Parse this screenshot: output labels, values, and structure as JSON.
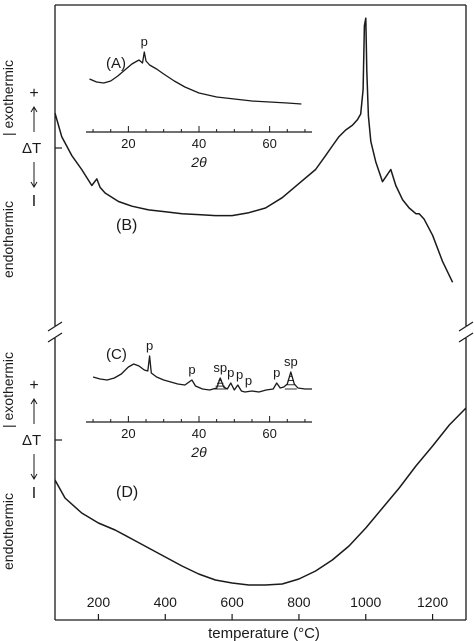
{
  "chart_data": [
    {
      "id": "B",
      "type": "line",
      "panel_label": "(B)",
      "ylabel_top": "endothermic",
      "ylabel_bottom": "exothermic",
      "ylabel_symbol": "ΔT",
      "ylabel_plus": "+",
      "ylabel_minus": "I",
      "xlim": [
        70,
        1300
      ],
      "series": [
        {
          "x": [
            70,
            90,
            120,
            150,
            180,
            195,
            205,
            220,
            260,
            300,
            350,
            400,
            450,
            500,
            550,
            600,
            650,
            700,
            750,
            800,
            850,
            880,
            900,
            920,
            940,
            960,
            975,
            985,
            992,
            996,
            1000,
            1003,
            1008,
            1015,
            1030,
            1050,
            1075,
            1090,
            1110,
            1130,
            1150,
            1160,
            1175,
            1200,
            1230,
            1260
          ],
          "y": [
            85,
            60,
            40,
            25,
            8,
            15,
            6,
            0,
            -9,
            -14,
            -18,
            -20,
            -22,
            -23,
            -24,
            -24,
            -21,
            -16,
            -5,
            10,
            25,
            40,
            50,
            60,
            67,
            72,
            78,
            84,
            110,
            178,
            186,
            130,
            82,
            55,
            33,
            12,
            25,
            8,
            -7,
            -16,
            -22,
            -22,
            -28,
            -45,
            -73,
            -95
          ]
        }
      ],
      "inset": {
        "label": "(A)",
        "xlabel": "2θ",
        "xlim": [
          8,
          72
        ],
        "xticks": [
          20,
          40,
          60
        ],
        "tick_labels": [
          "20",
          "40",
          "60"
        ],
        "peaks": [
          {
            "text": "p",
            "x": 24.5
          }
        ],
        "series": [
          {
            "x": [
              9,
              11,
              13,
              15,
              17,
              19,
              21,
              22,
              23,
              24,
              24.5,
              25,
              26,
              28,
              30,
              33,
              36,
              40,
              45,
              50,
              55,
              60,
              65,
              69
            ],
            "y": [
              53,
              50,
              49,
              51,
              56,
              62,
              68,
              70,
              72,
              69,
              80,
              71,
              67,
              63,
              58,
              51,
              45,
              39,
              35,
              33,
              31,
              30,
              29,
              28
            ]
          }
        ]
      }
    },
    {
      "id": "D",
      "type": "line",
      "panel_label": "(D)",
      "ylabel_top": "endothermic",
      "ylabel_bottom": "exothermic",
      "ylabel_symbol": "ΔT",
      "ylabel_plus": "+",
      "ylabel_minus": "I",
      "xlabel": "temperature (°C)",
      "xlim": [
        70,
        1300
      ],
      "xticks": [
        200,
        400,
        600,
        800,
        1000,
        1200
      ],
      "tick_labels": [
        "200",
        "400",
        "600",
        "800",
        "1000",
        "1200"
      ],
      "series": [
        {
          "x": [
            70,
            100,
            150,
            200,
            250,
            300,
            350,
            400,
            450,
            500,
            550,
            600,
            650,
            700,
            750,
            800,
            850,
            900,
            950,
            1000,
            1050,
            1100,
            1150,
            1200,
            1250,
            1300
          ],
          "y": [
            78,
            60,
            45,
            35,
            28,
            19,
            10,
            1,
            -8,
            -16,
            -22,
            -25,
            -27,
            -27,
            -26,
            -21,
            -13,
            -2,
            12,
            30,
            50,
            70,
            92,
            112,
            133,
            150
          ]
        }
      ],
      "inset": {
        "label": "(C)",
        "xlabel": "2θ",
        "xlim": [
          8,
          72
        ],
        "xticks": [
          20,
          40,
          60
        ],
        "tick_labels": [
          "20",
          "40",
          "60"
        ],
        "peaks": [
          {
            "text": "p",
            "x": 26
          },
          {
            "text": "p",
            "x": 38
          },
          {
            "text": "sp",
            "x": 46
          },
          {
            "text": "p",
            "x": 49
          },
          {
            "text": "p",
            "x": 51.5
          },
          {
            "text": "p",
            "x": 54
          },
          {
            "text": "p",
            "x": 62
          },
          {
            "text": "sp",
            "x": 66
          }
        ],
        "series": [
          {
            "x": [
              10,
              12,
              14,
              16,
              18,
              20,
              21.5,
              23,
              24.5,
              25.5,
              26,
              26.5,
              28,
              30,
              32,
              34,
              36,
              38,
              39,
              41,
              43,
              45,
              46,
              47,
              48,
              49,
              50,
              51,
              52,
              53,
              55,
              57,
              59,
              61,
              62,
              63,
              64,
              65,
              66,
              67,
              68,
              70,
              72
            ],
            "y": [
              45,
              43,
              42,
              44,
              48,
              55,
              58,
              56,
              52,
              51,
              66,
              49,
              45,
              42,
              40,
              38,
              37,
              42,
              36,
              33,
              32,
              34,
              44,
              35,
              33,
              39,
              32,
              37,
              31,
              30,
              31,
              30,
              32,
              33,
              39,
              34,
              35,
              38,
              50,
              38,
              34,
              33,
              33
            ]
          }
        ]
      }
    }
  ]
}
